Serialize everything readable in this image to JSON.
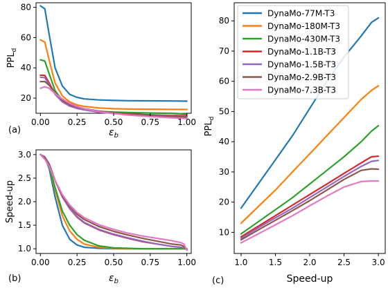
{
  "colors": {
    "DynaMo-77M-T3": "#1f77b4",
    "DynaMo-180M-T3": "#ff7f0e",
    "DynaMo-430M-T3": "#2ca02c",
    "DynaMo-1.1B-T3": "#d62728",
    "DynaMo-1.5B-T3": "#9467bd",
    "DynaMo-2.9B-T3": "#8c564b",
    "DynaMo-7.3B-T3": "#e377c2"
  },
  "chart_data": [
    {
      "type": "line",
      "panel_label": "(a)",
      "xlabel": "ε_b",
      "ylabel": "PPL_d",
      "xlim": [
        -0.03,
        1.03
      ],
      "ylim": [
        10,
        83
      ],
      "xticks": [
        "0.00",
        "0.25",
        "0.50",
        "0.75",
        "1.00"
      ],
      "xtick_values": [
        0,
        0.25,
        0.5,
        0.75,
        1.0
      ],
      "yticks": [
        "20",
        "40",
        "60",
        "80"
      ],
      "ytick_values": [
        20,
        40,
        60,
        80
      ],
      "grid": false,
      "x": [
        0,
        0.03,
        0.06,
        0.1,
        0.15,
        0.2,
        0.25,
        0.3,
        0.4,
        0.5,
        0.6,
        0.75,
        0.9,
        1.0
      ],
      "series": [
        {
          "name": "DynaMo-77M-T3",
          "values": [
            81,
            79,
            62,
            40,
            28,
            22.5,
            20.5,
            19.5,
            18.8,
            18.5,
            18.3,
            18.2,
            18.1,
            18.0
          ]
        },
        {
          "name": "DynaMo-180M-T3",
          "values": [
            58.5,
            57,
            45,
            30,
            21.5,
            17.5,
            15.5,
            14.5,
            13.5,
            13.0,
            12.8,
            12.7,
            12.6,
            12.5
          ]
        },
        {
          "name": "DynaMo-430M-T3",
          "values": [
            45.3,
            44.5,
            36,
            25,
            18.5,
            15,
            13.5,
            12.5,
            11.3,
            10.8,
            10.5,
            10.2,
            10.0,
            9.5
          ]
        },
        {
          "name": "DynaMo-1.1B-T3",
          "values": [
            35.2,
            35,
            30,
            23,
            18,
            15,
            13.5,
            12.5,
            11,
            10.2,
            9.6,
            9.0,
            8.6,
            8.5
          ]
        },
        {
          "name": "DynaMo-1.5B-T3",
          "values": [
            33.8,
            33.5,
            29,
            22.5,
            17.5,
            14.7,
            13.2,
            12.2,
            10.7,
            9.9,
            9.3,
            8.7,
            8.3,
            8.0
          ]
        },
        {
          "name": "DynaMo-2.9B-T3",
          "values": [
            30.9,
            31,
            28.5,
            23.5,
            19,
            16,
            14.2,
            13,
            11.4,
            10.3,
            9.4,
            8.5,
            7.8,
            7.5
          ]
        },
        {
          "name": "DynaMo-7.3B-T3",
          "values": [
            26.5,
            27.5,
            26.5,
            23,
            19.5,
            16.5,
            14.5,
            13,
            11,
            9.8,
            8.8,
            7.8,
            7.0,
            6.5
          ]
        }
      ]
    },
    {
      "type": "line",
      "panel_label": "(b)",
      "xlabel": "ε_b",
      "ylabel": "Speed-up",
      "xlim": [
        -0.03,
        1.03
      ],
      "ylim": [
        0.9,
        3.1
      ],
      "xticks": [
        "0.00",
        "0.25",
        "0.50",
        "0.75",
        "1.00"
      ],
      "xtick_values": [
        0,
        0.25,
        0.5,
        0.75,
        1.0
      ],
      "yticks": [
        "1.0",
        "1.5",
        "2.0",
        "2.5",
        "3.0"
      ],
      "ytick_values": [
        1.0,
        1.5,
        2.0,
        2.5,
        3.0
      ],
      "grid": false,
      "x": [
        0,
        0.03,
        0.06,
        0.1,
        0.15,
        0.2,
        0.25,
        0.3,
        0.4,
        0.5,
        0.6,
        0.7,
        0.8,
        0.9,
        0.96,
        0.98,
        1.0
      ],
      "series": [
        {
          "name": "DynaMo-77M-T3",
          "values": [
            3.0,
            2.95,
            2.7,
            2.1,
            1.5,
            1.2,
            1.08,
            1.03,
            1.01,
            1.0,
            1.0,
            1.0,
            1.0,
            1.0,
            1.0,
            1.0,
            1.0
          ]
        },
        {
          "name": "DynaMo-180M-T3",
          "values": [
            3.0,
            2.95,
            2.75,
            2.25,
            1.7,
            1.38,
            1.2,
            1.1,
            1.03,
            1.01,
            1.0,
            1.0,
            1.0,
            1.0,
            1.0,
            1.0,
            1.0
          ]
        },
        {
          "name": "DynaMo-430M-T3",
          "values": [
            3.0,
            2.95,
            2.75,
            2.3,
            1.8,
            1.5,
            1.3,
            1.18,
            1.06,
            1.02,
            1.01,
            1.0,
            1.0,
            1.0,
            1.0,
            1.0,
            1.0
          ]
        },
        {
          "name": "DynaMo-1.1B-T3",
          "values": [
            3.0,
            2.95,
            2.8,
            2.45,
            2.1,
            1.85,
            1.67,
            1.55,
            1.4,
            1.3,
            1.22,
            1.15,
            1.1,
            1.05,
            1.03,
            1.02,
            1.0
          ]
        },
        {
          "name": "DynaMo-1.5B-T3",
          "values": [
            3.0,
            2.95,
            2.8,
            2.45,
            2.1,
            1.85,
            1.68,
            1.56,
            1.41,
            1.31,
            1.23,
            1.16,
            1.1,
            1.05,
            1.03,
            1.02,
            1.0
          ]
        },
        {
          "name": "DynaMo-2.9B-T3",
          "values": [
            3.0,
            2.93,
            2.78,
            2.45,
            2.12,
            1.9,
            1.73,
            1.62,
            1.47,
            1.37,
            1.29,
            1.22,
            1.16,
            1.1,
            1.08,
            1.05,
            0.97
          ]
        },
        {
          "name": "DynaMo-7.3B-T3",
          "values": [
            3.0,
            2.9,
            2.75,
            2.45,
            2.15,
            1.93,
            1.77,
            1.66,
            1.51,
            1.41,
            1.33,
            1.27,
            1.22,
            1.17,
            1.13,
            1.1,
            0.97
          ]
        }
      ]
    },
    {
      "type": "line",
      "panel_label": "(c)",
      "xlabel": "Speed-up",
      "ylabel": "PPL_d",
      "xlim": [
        0.9,
        3.1
      ],
      "ylim": [
        3,
        86
      ],
      "xticks": [
        "1.0",
        "1.5",
        "2.0",
        "2.5",
        "3.0"
      ],
      "xtick_values": [
        1.0,
        1.5,
        2.0,
        2.5,
        3.0
      ],
      "yticks": [
        "10",
        "20",
        "30",
        "40",
        "50",
        "60",
        "70",
        "80"
      ],
      "ytick_values": [
        10,
        20,
        30,
        40,
        50,
        60,
        70,
        80
      ],
      "grid": false,
      "legend_position": "top-left",
      "x": [
        1.0,
        1.25,
        1.5,
        1.75,
        2.0,
        2.25,
        2.5,
        2.75,
        2.9,
        3.0
      ],
      "series": [
        {
          "name": "DynaMo-77M-T3",
          "values": [
            18,
            26,
            34,
            42,
            51,
            60,
            68,
            75,
            79.5,
            81
          ]
        },
        {
          "name": "DynaMo-180M-T3",
          "values": [
            13,
            18.5,
            24,
            30,
            36,
            42,
            48,
            54,
            57,
            58.5
          ]
        },
        {
          "name": "DynaMo-430M-T3",
          "values": [
            9.5,
            13.5,
            17.5,
            21.5,
            26,
            30.5,
            35,
            40,
            43.5,
            45.3
          ]
        },
        {
          "name": "DynaMo-1.1B-T3",
          "values": [
            8.5,
            12,
            15.5,
            19,
            22.5,
            26,
            29.5,
            33,
            35,
            35.2
          ]
        },
        {
          "name": "DynaMo-1.5B-T3",
          "values": [
            8,
            11.5,
            14.8,
            18,
            21.5,
            25,
            28.5,
            31.8,
            33.5,
            33.8
          ]
        },
        {
          "name": "DynaMo-2.9B-T3",
          "values": [
            7.5,
            10.8,
            14,
            17.2,
            20.5,
            24,
            27.5,
            30.5,
            31,
            30.9
          ]
        },
        {
          "name": "DynaMo-7.3B-T3",
          "values": [
            6.5,
            9.5,
            12.5,
            15.5,
            18.8,
            22,
            25,
            26.8,
            27,
            27
          ]
        }
      ]
    }
  ]
}
